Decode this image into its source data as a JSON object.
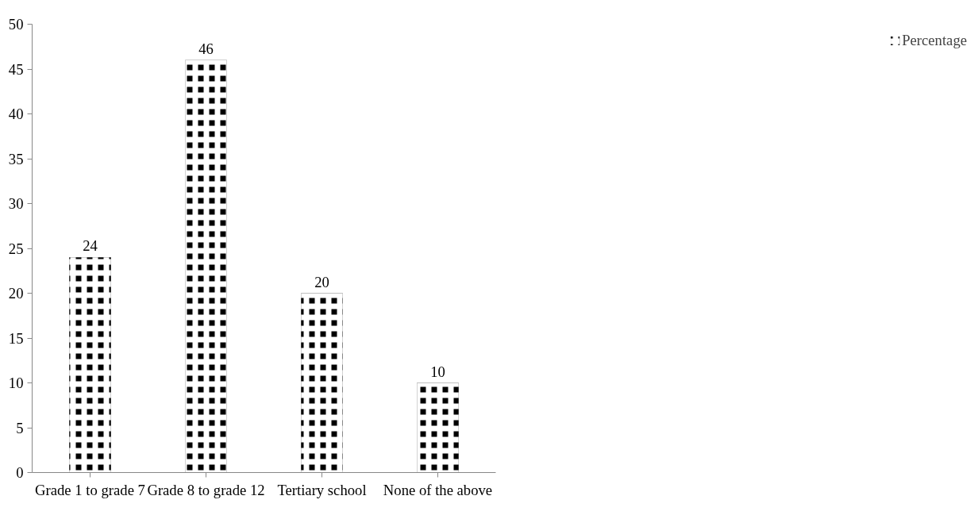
{
  "chart_data": {
    "type": "bar",
    "categories": [
      "Grade 1 to grade 7",
      "Grade 8 to grade 12",
      "Tertiary school",
      "None of the above"
    ],
    "series": [
      {
        "name": "Percentage",
        "color": "#000000",
        "values": [
          24,
          46,
          20,
          10
        ]
      }
    ],
    "ylim": [
      0,
      50
    ],
    "yticks": [
      0,
      5,
      10,
      15,
      20,
      25,
      30,
      35,
      40,
      45,
      50
    ],
    "grid": false,
    "legend": "right",
    "data_labels": true
  }
}
